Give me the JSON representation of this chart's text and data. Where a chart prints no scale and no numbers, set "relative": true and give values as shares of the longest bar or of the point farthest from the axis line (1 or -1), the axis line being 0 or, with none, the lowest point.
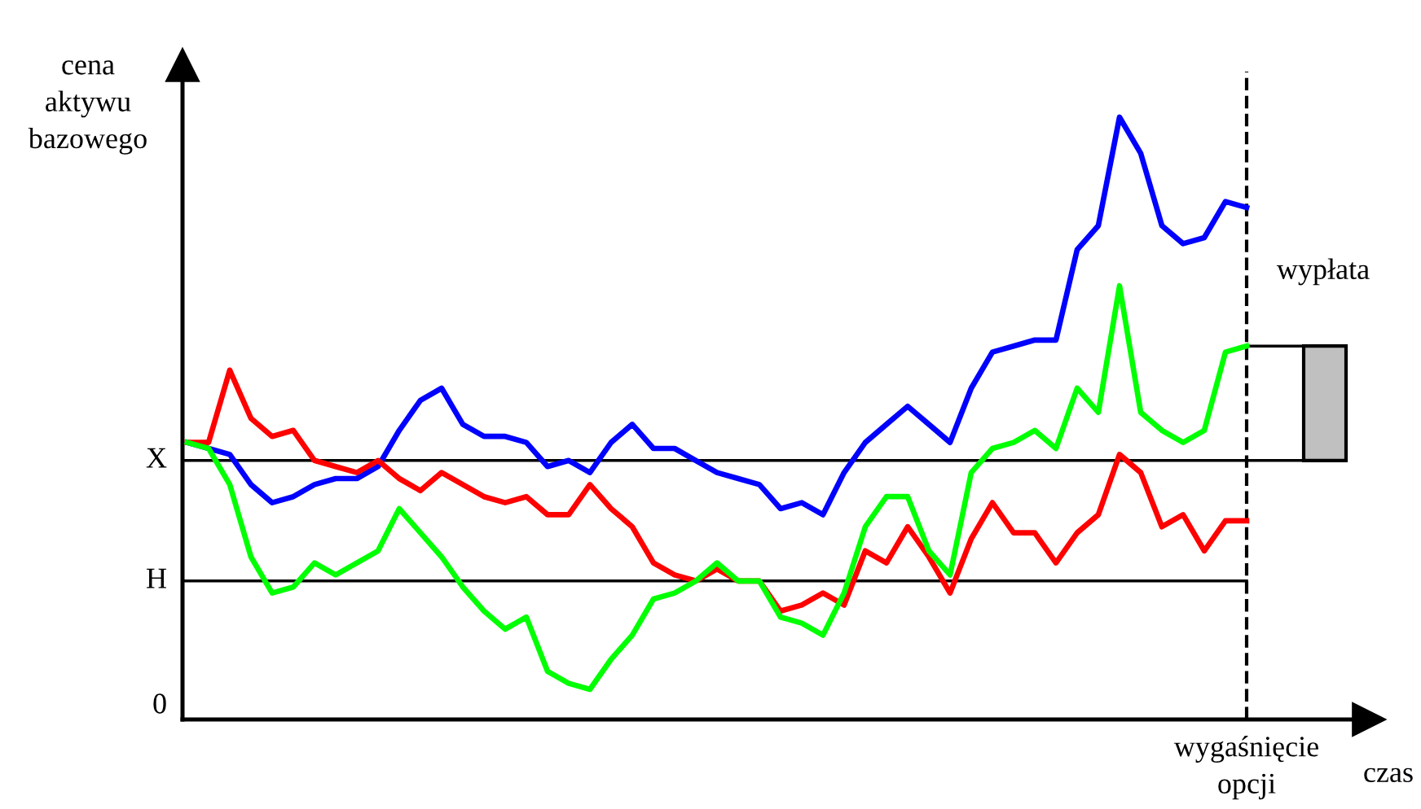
{
  "chart_data": {
    "type": "line",
    "relative": true,
    "ylabel": "cena aktywu bazowego",
    "xlabel": "czas",
    "categories": [
      null,
      null,
      null,
      null,
      null,
      null,
      null,
      null,
      null,
      null,
      null,
      null,
      null,
      null,
      null,
      null,
      null,
      null,
      null,
      null,
      null,
      null,
      null,
      null,
      null,
      null,
      null,
      null,
      null,
      null,
      null,
      null,
      null,
      null,
      null,
      null,
      null,
      null,
      null,
      null,
      null,
      null,
      null,
      null,
      null,
      null,
      null,
      null,
      null,
      null,
      null
    ],
    "series": [
      {
        "color": "#0000ff",
        "values": [
          0.46,
          0.45,
          0.44,
          0.39,
          0.36,
          0.37,
          0.39,
          0.4,
          0.4,
          0.42,
          0.48,
          0.53,
          0.55,
          0.49,
          0.47,
          0.47,
          0.46,
          0.42,
          0.43,
          0.41,
          0.46,
          0.49,
          0.45,
          0.45,
          0.43,
          0.41,
          0.4,
          0.39,
          0.35,
          0.36,
          0.34,
          0.41,
          0.46,
          0.49,
          0.52,
          0.49,
          0.46,
          0.55,
          0.61,
          0.62,
          0.63,
          0.63,
          0.78,
          0.82,
          1,
          0.94,
          0.82,
          0.79,
          0.8,
          0.86,
          0.85
        ]
      },
      {
        "color": "#ff0000",
        "values": [
          0.46,
          0.46,
          0.58,
          0.5,
          0.47,
          0.48,
          0.43,
          0.42,
          0.41,
          0.43,
          0.4,
          0.38,
          0.41,
          0.39,
          0.37,
          0.36,
          0.37,
          0.34,
          0.34,
          0.39,
          0.35,
          0.32,
          0.26,
          0.24,
          0.23,
          0.25,
          0.23,
          0.23,
          0.18,
          0.19,
          0.21,
          0.19,
          0.28,
          0.26,
          0.32,
          0.27,
          0.21,
          0.3,
          0.36,
          0.31,
          0.31,
          0.26,
          0.31,
          0.34,
          0.44,
          0.41,
          0.32,
          0.34,
          0.28,
          0.33,
          0.33
        ]
      },
      {
        "color": "#00ff00",
        "values": [
          0.46,
          0.45,
          0.39,
          0.27,
          0.21,
          0.22,
          0.26,
          0.24,
          0.26,
          0.28,
          0.35,
          0.31,
          0.27,
          0.22,
          0.18,
          0.15,
          0.17,
          0.08,
          0.06,
          0.05,
          0.1,
          0.14,
          0.2,
          0.21,
          0.23,
          0.26,
          0.23,
          0.23,
          0.17,
          0.16,
          0.14,
          0.21,
          0.32,
          0.37,
          0.37,
          0.28,
          0.24,
          0.41,
          0.45,
          0.46,
          0.48,
          0.45,
          0.55,
          0.51,
          0.72,
          0.51,
          0.48,
          0.46,
          0.48,
          0.61,
          0.62
        ]
      }
    ],
    "ref_lines": [
      {
        "axis": "y",
        "value": 0.43,
        "label": "X",
        "color": "#000000"
      },
      {
        "axis": "y",
        "value": 0.23,
        "label": "H",
        "color": "#000000"
      }
    ],
    "annotations": [
      "0",
      "wypłata",
      "wygaśnięcie opcji"
    ],
    "grid": false,
    "line_style": "solid",
    "marker": "none"
  }
}
